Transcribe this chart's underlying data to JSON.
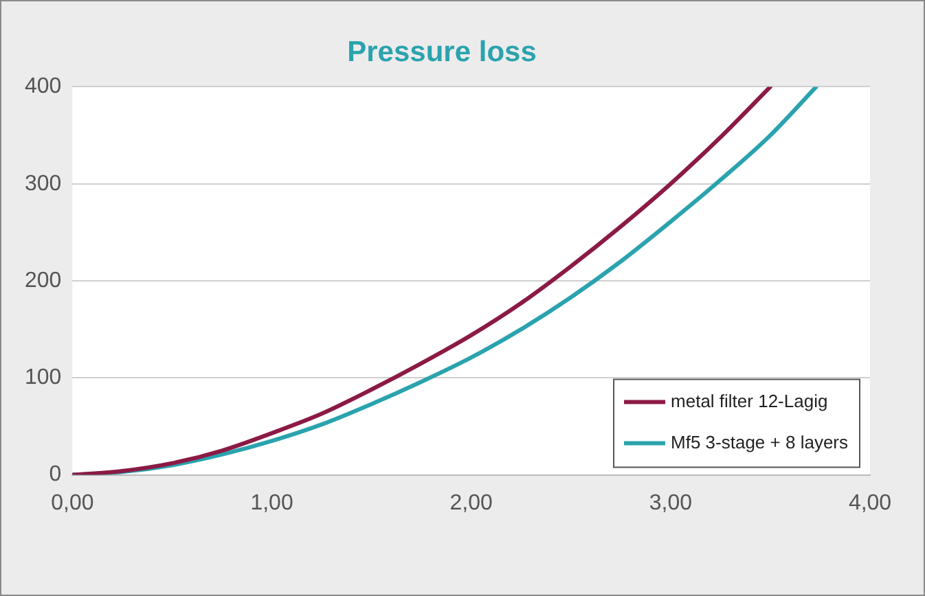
{
  "chart_data": {
    "type": "line",
    "title": "Pressure loss",
    "series": [
      {
        "name": "metal filter 12-Lagig",
        "color": "#8b1a45",
        "x": [
          0,
          0.25,
          0.5,
          0.75,
          1,
          1.25,
          1.5,
          1.75,
          2,
          2.25,
          2.5,
          2.75,
          3,
          3.25,
          3.5
        ],
        "values": [
          0,
          4,
          12,
          25,
          43,
          63,
          88,
          115,
          144,
          177,
          215,
          256,
          300,
          348,
          400
        ]
      },
      {
        "name": "Mf5 3-stage + 8 layers",
        "color": "#2aa3ae",
        "x": [
          0,
          0.25,
          0.5,
          0.75,
          1,
          1.25,
          1.5,
          1.75,
          2,
          2.25,
          2.5,
          2.75,
          3,
          3.25,
          3.5,
          3.73
        ],
        "values": [
          0,
          3,
          10,
          21,
          35,
          52,
          73,
          96,
          121,
          150,
          183,
          220,
          261,
          304,
          350,
          400
        ]
      }
    ],
    "xlim": [
      0,
      4
    ],
    "xticks": [
      {
        "value": 0,
        "label": "0,00"
      },
      {
        "value": 1,
        "label": "1,00"
      },
      {
        "value": 2,
        "label": "2,00"
      },
      {
        "value": 3,
        "label": "3,00"
      },
      {
        "value": 4,
        "label": "4,00"
      }
    ],
    "ylim": [
      0,
      400
    ],
    "yticks": [
      0,
      100,
      200,
      300,
      400
    ],
    "grid": "y",
    "legend": "bottom right",
    "marker": "none",
    "line_style": "solid"
  }
}
